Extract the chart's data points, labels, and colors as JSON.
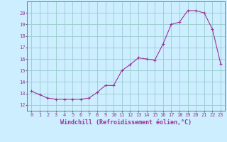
{
  "x": [
    0,
    1,
    2,
    3,
    4,
    5,
    6,
    7,
    8,
    9,
    10,
    11,
    12,
    13,
    14,
    15,
    16,
    17,
    18,
    19,
    20,
    21,
    22,
    23
  ],
  "y": [
    13.2,
    12.9,
    12.6,
    12.5,
    12.5,
    12.5,
    12.5,
    12.6,
    13.1,
    13.7,
    13.7,
    15.0,
    15.5,
    16.1,
    16.0,
    15.9,
    17.3,
    19.0,
    19.2,
    20.2,
    20.2,
    20.0,
    18.6,
    15.6
  ],
  "line_color": "#993399",
  "marker": "+",
  "bg_color": "#cceeff",
  "grid_color": "#99cccc",
  "ylabel_ticks": [
    12,
    13,
    14,
    15,
    16,
    17,
    18,
    19,
    20
  ],
  "xlim": [
    -0.5,
    23.5
  ],
  "ylim": [
    11.5,
    21.0
  ],
  "xticks": [
    0,
    1,
    2,
    3,
    4,
    5,
    6,
    7,
    8,
    9,
    10,
    11,
    12,
    13,
    14,
    15,
    16,
    17,
    18,
    19,
    20,
    21,
    22,
    23
  ],
  "xlabel": "Windchill (Refroidissement éolien,°C)",
  "label_color": "#993399",
  "tick_fontsize": 5.0,
  "xlabel_fontsize": 6.0
}
